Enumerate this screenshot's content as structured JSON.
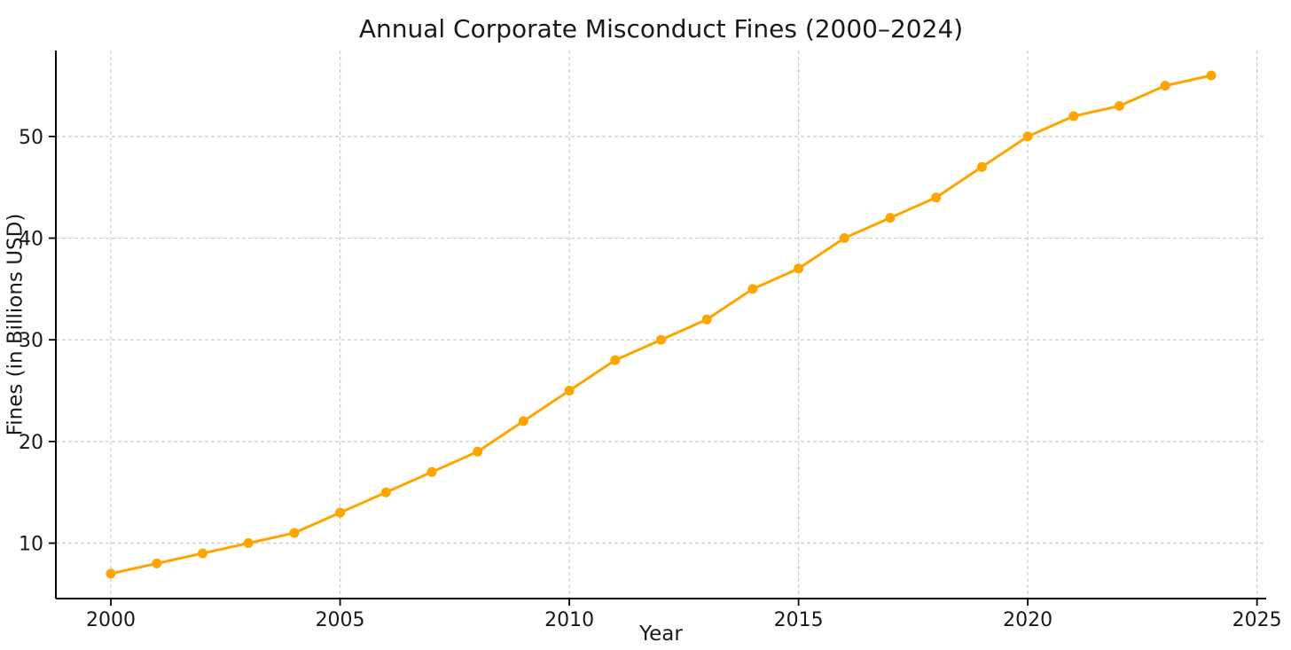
{
  "chart_data": {
    "type": "line",
    "title": "Annual Corporate Misconduct Fines (2000–2024)",
    "xlabel": "Year",
    "ylabel": "Fines (in Billions USD)",
    "x": [
      2000,
      2001,
      2002,
      2003,
      2004,
      2005,
      2006,
      2007,
      2008,
      2009,
      2010,
      2011,
      2012,
      2013,
      2014,
      2015,
      2016,
      2017,
      2018,
      2019,
      2020,
      2021,
      2022,
      2023,
      2024
    ],
    "values": [
      7,
      8,
      9,
      10,
      11,
      13,
      15,
      17,
      19,
      22,
      25,
      28,
      30,
      32,
      35,
      37,
      40,
      42,
      44,
      47,
      50,
      52,
      53,
      55,
      56
    ],
    "xticks": [
      2000,
      2005,
      2010,
      2015,
      2020,
      2025
    ],
    "yticks": [
      10,
      20,
      30,
      40,
      50
    ],
    "xlim": [
      1998.8,
      2025.2
    ],
    "ylim": [
      4.55,
      58.45
    ],
    "line_color": "#FFA500",
    "marker": "circle",
    "marker_color": "#FFA500",
    "grid": "dashed",
    "grid_color": "#cccccc",
    "spine_color": "#000000",
    "text_color": "#1a1a1a",
    "background": "#ffffff",
    "legend": "none"
  }
}
